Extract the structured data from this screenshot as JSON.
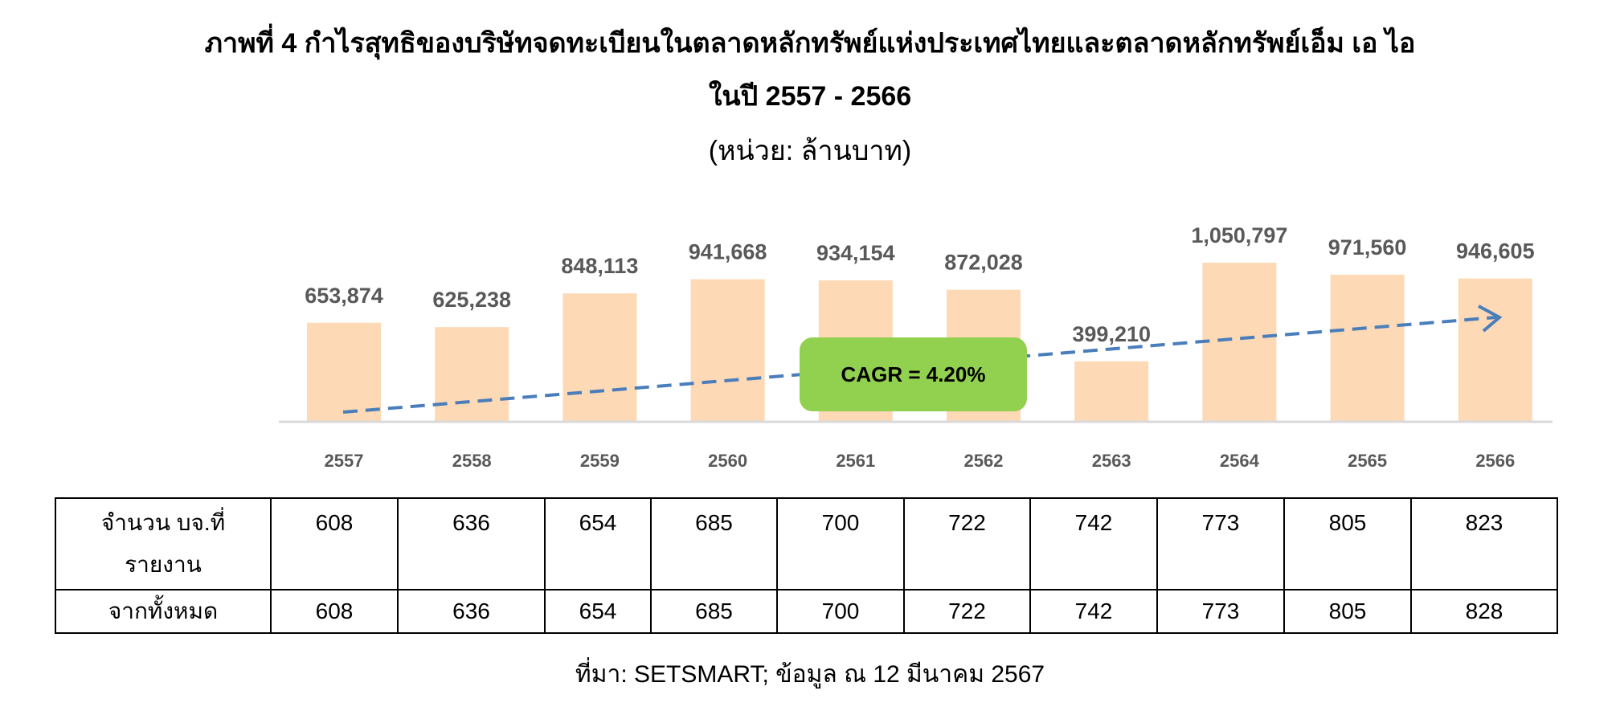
{
  "title_line1": "ภาพที่ 4 กำไรสุทธิของบริษัทจดทะเบียนในตลาดหลักทรัพย์แห่งประเทศไทยและตลาดหลักทรัพย์เอ็ม เอ ไอ",
  "title_line2": "ในปี 2557 - 2566",
  "unit": "(หน่วย:  ล้านบาท)",
  "chart_data": {
    "type": "bar",
    "title": "ภาพที่ 4 กำไรสุทธิของบริษัทจดทะเบียนในตลาดหลักทรัพย์แห่งประเทศไทยและตลาดหลักทรัพย์เอ็ม เอ ไอ ในปี 2557 - 2566",
    "categories": [
      "2557",
      "2558",
      "2559",
      "2560",
      "2561",
      "2562",
      "2563",
      "2564",
      "2565",
      "2566"
    ],
    "values": [
      653874,
      625238,
      848113,
      941668,
      934154,
      872028,
      399210,
      1050797,
      971560,
      946605
    ],
    "value_labels": [
      "653,874",
      "625,238",
      "848,113",
      "941,668",
      "934,154",
      "872,028",
      "399,210",
      "1,050,797",
      "971,560",
      "946,605"
    ],
    "ylim": [
      0,
      1400000
    ],
    "grid": false,
    "legend": "none",
    "bar_color": "#fdd9b5",
    "trendline_color": "#4a7ebb",
    "annotation": "CAGR = 4.20%",
    "annotation_color": "#92d050"
  },
  "table": {
    "row1_label": "จำนวน บจ.ที่\nรายงาน",
    "row1_label_lines": [
      "จำนวน บจ.ที่",
      "รายงาน"
    ],
    "row1_values": [
      "608",
      "636",
      "654",
      "685",
      "700",
      "722",
      "742",
      "773",
      "805",
      "823"
    ],
    "row2_label": "จากทั้งหมด",
    "row2_values": [
      "608",
      "636",
      "654",
      "685",
      "700",
      "722",
      "742",
      "773",
      "805",
      "828"
    ]
  },
  "source": "ที่มา: SETSMART; ข้อมูล ณ 12 มีนาคม 2567"
}
